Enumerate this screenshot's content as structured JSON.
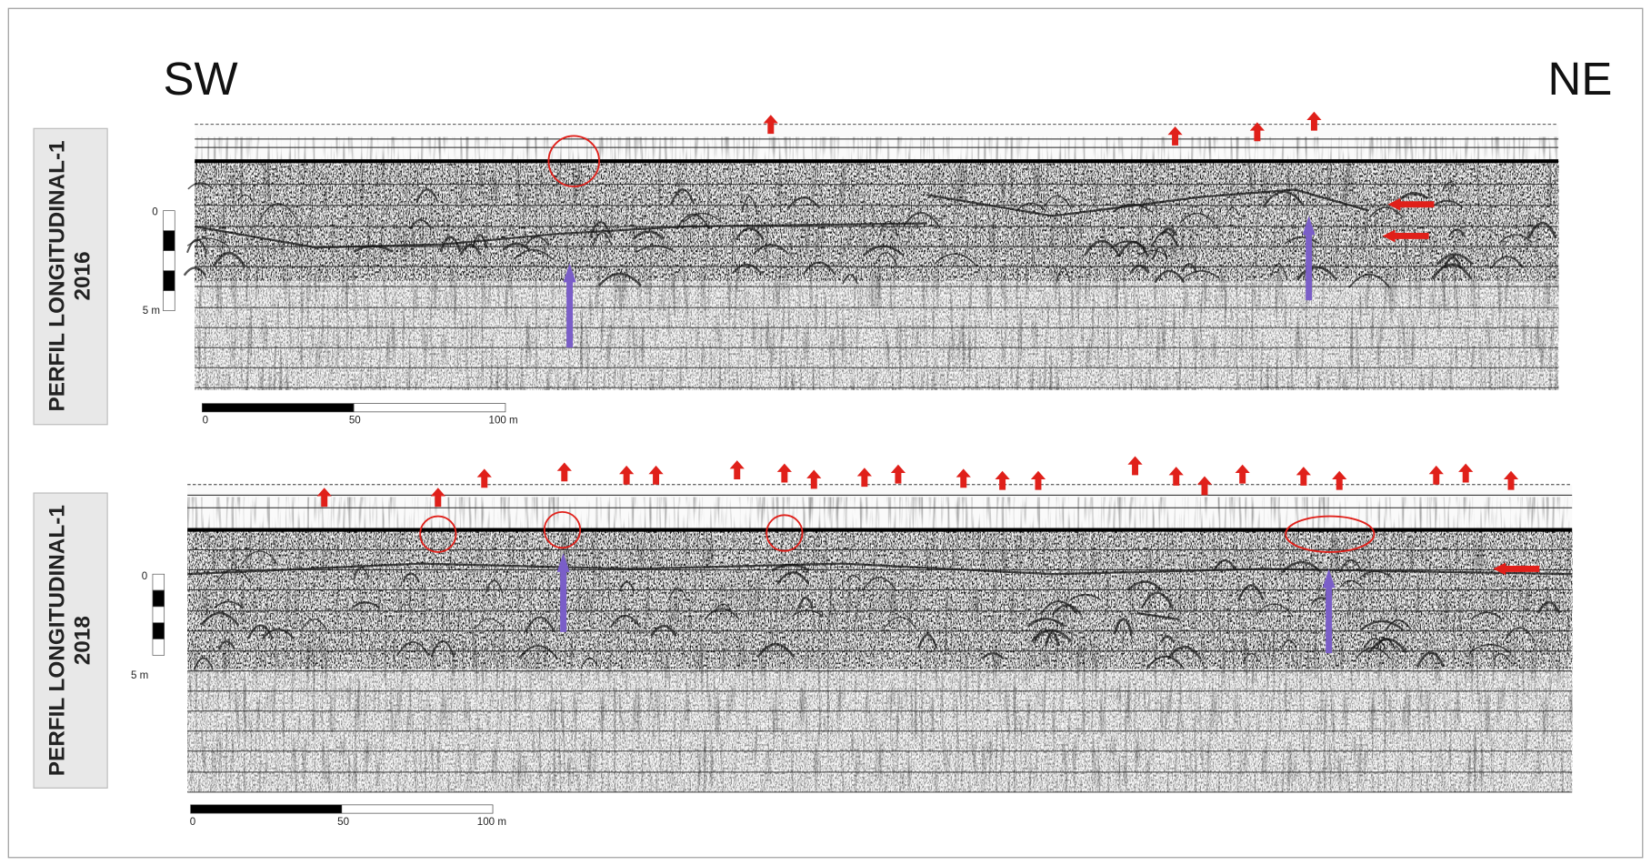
{
  "header": {
    "left": "SW",
    "right": "NE"
  },
  "panels": [
    {
      "title": "PERFIL LONGITUDINAL-1",
      "year": "2016",
      "depth_scale": [
        "0",
        "5 m"
      ],
      "distance_scale": [
        "0",
        "50",
        "100 m"
      ]
    },
    {
      "title": "PERFIL LONGITUDINAL-1",
      "year": "2018",
      "depth_scale": [
        "0",
        "5 m"
      ],
      "distance_scale": [
        "0",
        "50",
        "100 m"
      ]
    }
  ]
}
